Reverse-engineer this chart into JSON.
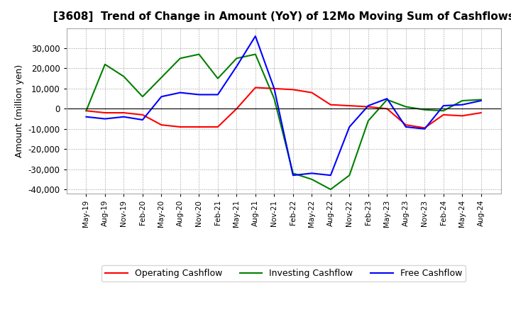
{
  "title": "[3608]  Trend of Change in Amount (YoY) of 12Mo Moving Sum of Cashflows",
  "ylabel": "Amount (million yen)",
  "x_labels": [
    "May-19",
    "Aug-19",
    "Nov-19",
    "Feb-20",
    "May-20",
    "Aug-20",
    "Nov-20",
    "Feb-21",
    "May-21",
    "Aug-21",
    "Nov-21",
    "Feb-22",
    "May-22",
    "Aug-22",
    "Nov-22",
    "Feb-23",
    "May-23",
    "Aug-23",
    "Nov-23",
    "Feb-24",
    "May-24",
    "Aug-24"
  ],
  "operating": [
    -1000,
    -2000,
    -2000,
    -3000,
    -8000,
    -9000,
    -9000,
    -9000,
    0,
    10500,
    10000,
    9500,
    8000,
    2000,
    1500,
    1000,
    0,
    -8000,
    -9500,
    -3000,
    -3500,
    -2000
  ],
  "investing": [
    -1000,
    22000,
    16000,
    6000,
    15500,
    25000,
    27000,
    15000,
    25000,
    27000,
    5000,
    -32000,
    -35000,
    -40000,
    -33000,
    -6000,
    4500,
    1000,
    -500,
    -1000,
    4000,
    4500
  ],
  "free": [
    -4000,
    -5000,
    -4000,
    -5500,
    6000,
    8000,
    7000,
    7000,
    21000,
    36000,
    10000,
    -33000,
    -32000,
    -33000,
    -9000,
    1500,
    5000,
    -9000,
    -10000,
    1500,
    2000,
    4000
  ],
  "operating_color": "#ff0000",
  "investing_color": "#008000",
  "free_color": "#0000ff",
  "ylim": [
    -42000,
    40000
  ],
  "yticks": [
    -40000,
    -30000,
    -20000,
    -10000,
    0,
    10000,
    20000,
    30000
  ],
  "background_color": "#ffffff",
  "grid_color": "#999999"
}
